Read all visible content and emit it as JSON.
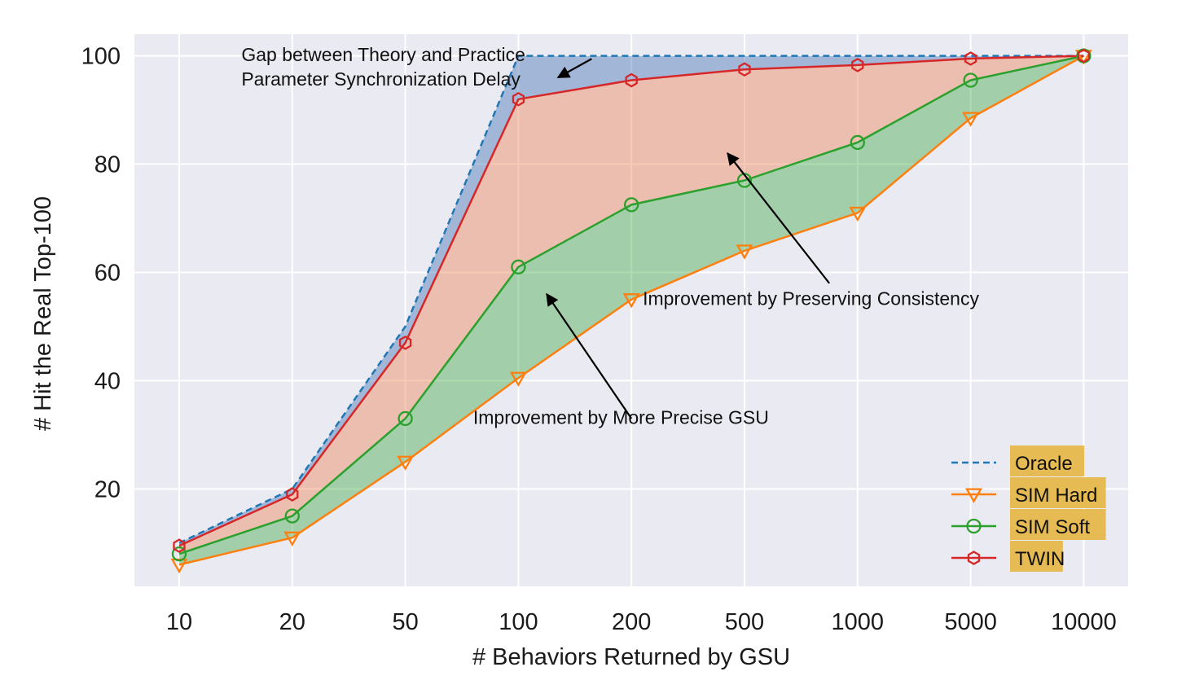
{
  "chart_data": {
    "type": "line",
    "categories": [
      "10",
      "20",
      "50",
      "100",
      "200",
      "500",
      "1000",
      "5000",
      "10000"
    ],
    "xlabel": "# Behaviors Returned by GSU",
    "ylabel": "# Hit the Real Top-100",
    "ylim": [
      2,
      104
    ],
    "yticks": [
      20,
      40,
      60,
      80,
      100
    ],
    "grid": true,
    "legend_position": "bottom-right",
    "series": [
      {
        "name": "Oracle",
        "color": "#1f77b4",
        "style": "dashed",
        "marker": "none",
        "values": [
          10,
          20,
          50,
          100,
          100,
          100,
          100,
          100,
          100
        ]
      },
      {
        "name": "SIM Hard",
        "color": "#ff7f0e",
        "style": "solid",
        "marker": "triangle-down",
        "values": [
          6,
          11,
          25,
          40.5,
          55,
          64,
          71,
          88.5,
          100
        ]
      },
      {
        "name": "SIM Soft",
        "color": "#2ca02c",
        "style": "solid",
        "marker": "circle",
        "values": [
          8,
          15,
          33,
          61,
          72.5,
          77,
          84,
          95.5,
          100
        ]
      },
      {
        "name": "TWIN",
        "color": "#d62728",
        "style": "solid",
        "marker": "hexagon",
        "values": [
          9.5,
          19,
          47,
          92,
          95.5,
          97.5,
          98.3,
          99.5,
          100
        ]
      }
    ],
    "fills": [
      {
        "between": [
          "Oracle",
          "TWIN"
        ],
        "color": "#4c78b8"
      },
      {
        "between": [
          "TWIN",
          "SIM Soft"
        ],
        "color": "#f08a5d"
      },
      {
        "between": [
          "SIM Soft",
          "SIM Hard"
        ],
        "color": "#4caf50"
      }
    ],
    "annotations": [
      {
        "lines": [
          "Gap between Theory and Practice",
          "Parameter Synchronization Delay"
        ],
        "text_xy": [
          0.55,
          99
        ],
        "arrow_to": [
          3.35,
          96
        ]
      },
      {
        "lines": [
          "Improvement by Preserving Consistency"
        ],
        "text_xy": [
          4.1,
          54
        ],
        "arrow_from": [
          5.75,
          58
        ],
        "arrow_to": [
          4.85,
          82
        ]
      },
      {
        "lines": [
          "Improvement by More Precise GSU"
        ],
        "text_xy": [
          2.6,
          32
        ],
        "arrow_from": [
          4,
          33
        ],
        "arrow_to": [
          3.25,
          56
        ]
      }
    ]
  }
}
